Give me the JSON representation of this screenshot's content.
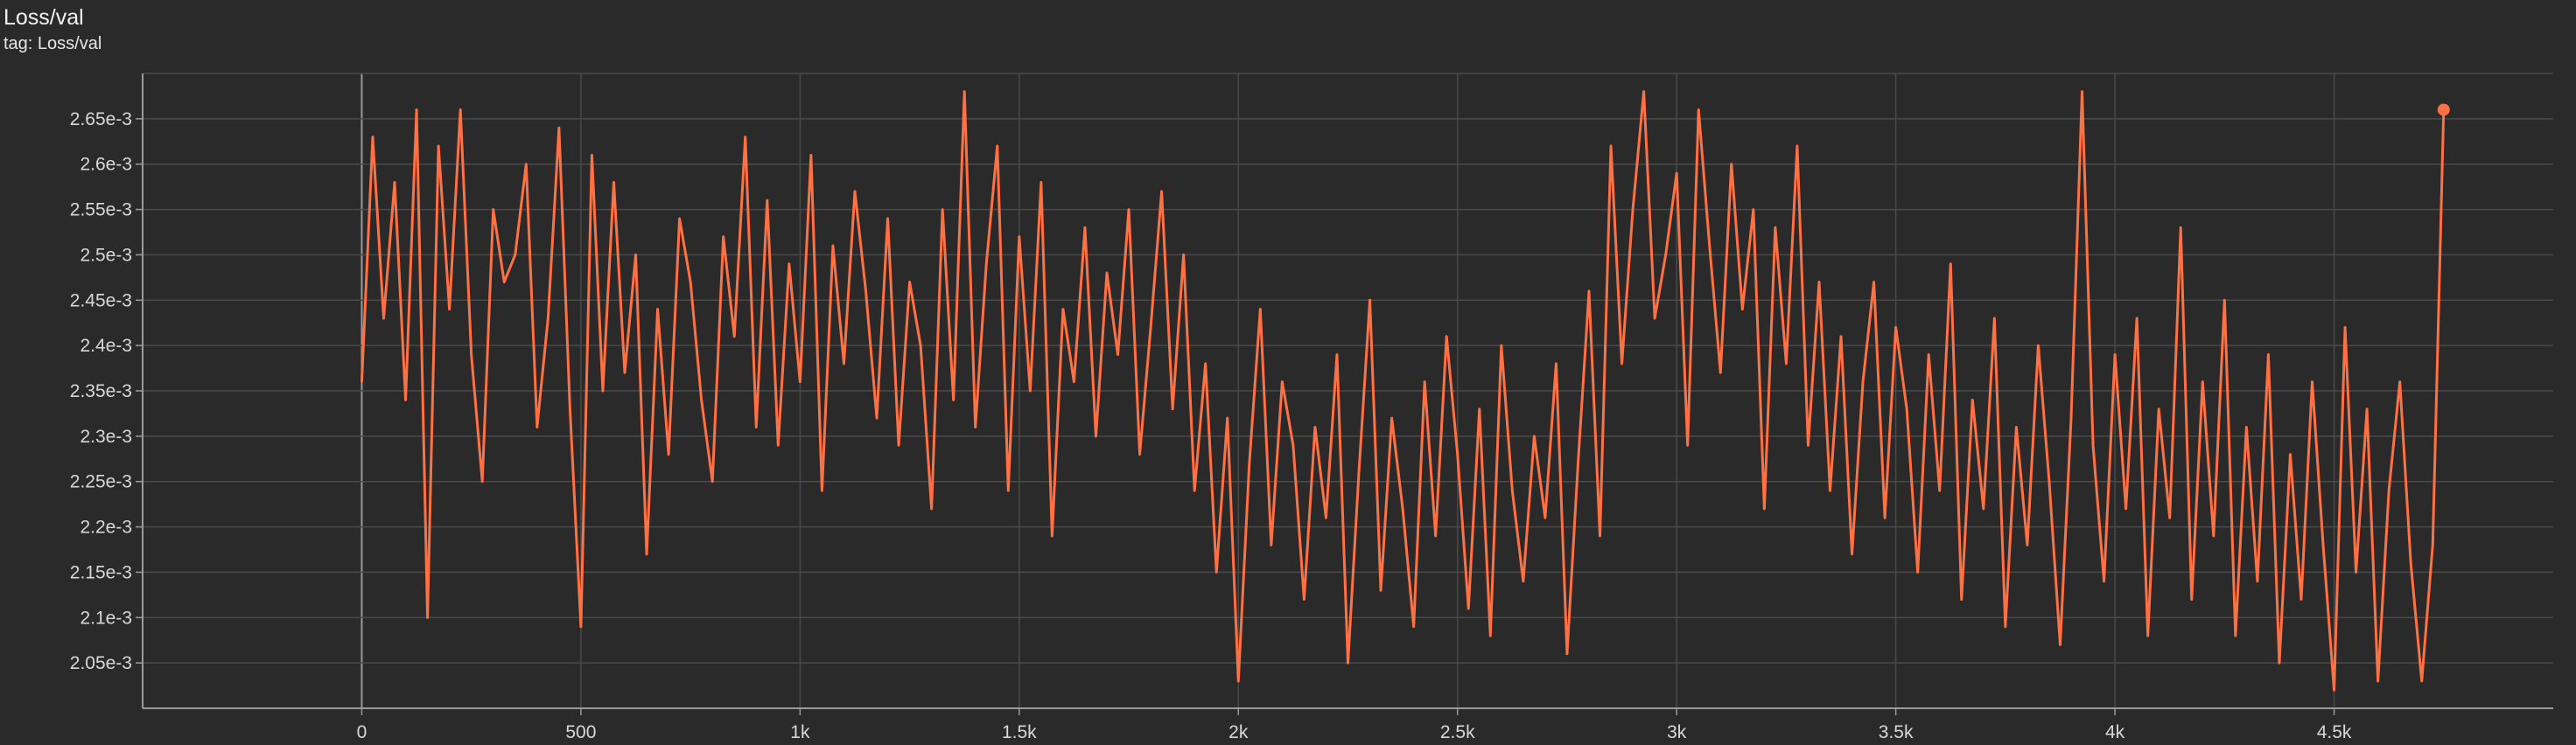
{
  "card": {
    "title": "Loss/val",
    "subtitle": "tag: Loss/val"
  },
  "colors": {
    "background": "#2a2a2a",
    "series": "#ff7043",
    "grid": "#4a4a4a",
    "axis": "#9a9a9a"
  },
  "chart_data": {
    "type": "line",
    "title": "Loss/val",
    "xlabel": "",
    "ylabel": "",
    "xlim": [
      -500,
      5000
    ],
    "ylim": [
      0.002,
      0.0027
    ],
    "grid": true,
    "x_ticks": [
      0,
      500,
      1000,
      1500,
      2000,
      2500,
      3000,
      3500,
      4000,
      4500
    ],
    "x_tick_labels": [
      "0",
      "500",
      "1k",
      "1.5k",
      "2k",
      "2.5k",
      "3k",
      "3.5k",
      "4k",
      "4.5k"
    ],
    "y_ticks": [
      0.00205,
      0.0021,
      0.00215,
      0.0022,
      0.00225,
      0.0023,
      0.00235,
      0.0024,
      0.00245,
      0.0025,
      0.00255,
      0.0026,
      0.00265
    ],
    "y_tick_labels": [
      "2.05e-3",
      "2.1e-3",
      "2.15e-3",
      "2.2e-3",
      "2.25e-3",
      "2.3e-3",
      "2.35e-3",
      "2.4e-3",
      "2.45e-3",
      "2.5e-3",
      "2.55e-3",
      "2.6e-3",
      "2.65e-3"
    ],
    "series": [
      {
        "name": "",
        "color": "#ff7043",
        "x": [
          0,
          25,
          50,
          75,
          100,
          125,
          150,
          175,
          200,
          225,
          250,
          275,
          300,
          325,
          350,
          375,
          400,
          425,
          450,
          475,
          500,
          525,
          550,
          575,
          600,
          625,
          650,
          675,
          700,
          725,
          750,
          775,
          800,
          825,
          850,
          875,
          900,
          925,
          950,
          975,
          1000,
          1025,
          1050,
          1075,
          1100,
          1125,
          1150,
          1175,
          1200,
          1225,
          1250,
          1275,
          1300,
          1325,
          1350,
          1375,
          1400,
          1425,
          1450,
          1475,
          1500,
          1525,
          1550,
          1575,
          1600,
          1625,
          1650,
          1675,
          1700,
          1725,
          1750,
          1775,
          1800,
          1825,
          1850,
          1875,
          1900,
          1925,
          1950,
          1975,
          2000,
          2025,
          2050,
          2075,
          2100,
          2125,
          2150,
          2175,
          2200,
          2225,
          2250,
          2275,
          2300,
          2325,
          2350,
          2375,
          2400,
          2425,
          2450,
          2475,
          2500,
          2525,
          2550,
          2575,
          2600,
          2625,
          2650,
          2675,
          2700,
          2725,
          2750,
          2775,
          2800,
          2825,
          2850,
          2875,
          2900,
          2925,
          2950,
          2975,
          3000,
          3025,
          3050,
          3075,
          3100,
          3125,
          3150,
          3175,
          3200,
          3225,
          3250,
          3275,
          3300,
          3325,
          3350,
          3375,
          3400,
          3425,
          3450,
          3475,
          3500,
          3525,
          3550,
          3575,
          3600,
          3625,
          3650,
          3675,
          3700,
          3725,
          3750,
          3775,
          3800,
          3825,
          3850,
          3875,
          3900,
          3925,
          3950,
          3975,
          4000,
          4025,
          4050,
          4075,
          4100,
          4125,
          4150,
          4175,
          4200,
          4225,
          4250,
          4275,
          4300,
          4325,
          4350,
          4375,
          4400,
          4425,
          4450,
          4475,
          4500,
          4525,
          4550,
          4575,
          4600,
          4625,
          4650,
          4675,
          4700,
          4725,
          4750
        ],
        "y": [
          0.00236,
          0.00263,
          0.00243,
          0.00258,
          0.00234,
          0.00266,
          0.0021,
          0.00262,
          0.00244,
          0.00266,
          0.00239,
          0.00225,
          0.00255,
          0.00247,
          0.0025,
          0.0026,
          0.00231,
          0.00243,
          0.00264,
          0.00233,
          0.00209,
          0.00261,
          0.00235,
          0.00258,
          0.00237,
          0.0025,
          0.00217,
          0.00244,
          0.00228,
          0.00254,
          0.00247,
          0.00234,
          0.00225,
          0.00252,
          0.00241,
          0.00263,
          0.00231,
          0.00256,
          0.00229,
          0.00249,
          0.00236,
          0.00261,
          0.00224,
          0.00251,
          0.00238,
          0.00257,
          0.00246,
          0.00232,
          0.00254,
          0.00229,
          0.00247,
          0.0024,
          0.00222,
          0.00255,
          0.00234,
          0.00268,
          0.00231,
          0.00249,
          0.00262,
          0.00224,
          0.00252,
          0.00235,
          0.00258,
          0.00219,
          0.00244,
          0.00236,
          0.00253,
          0.0023,
          0.00248,
          0.00239,
          0.00255,
          0.00228,
          0.00242,
          0.00257,
          0.00233,
          0.0025,
          0.00224,
          0.00238,
          0.00215,
          0.00232,
          0.00203,
          0.00227,
          0.00244,
          0.00218,
          0.00236,
          0.00229,
          0.00212,
          0.00231,
          0.00221,
          0.00239,
          0.00205,
          0.00226,
          0.00245,
          0.00213,
          0.00232,
          0.00222,
          0.00209,
          0.00236,
          0.00219,
          0.00241,
          0.00228,
          0.00211,
          0.00233,
          0.00208,
          0.0024,
          0.00224,
          0.00214,
          0.0023,
          0.00221,
          0.00238,
          0.00206,
          0.00227,
          0.00246,
          0.00219,
          0.00262,
          0.00238,
          0.00255,
          0.00268,
          0.00243,
          0.0025,
          0.00259,
          0.00229,
          0.00266,
          0.00251,
          0.00237,
          0.0026,
          0.00244,
          0.00255,
          0.00222,
          0.00253,
          0.00238,
          0.00262,
          0.00229,
          0.00247,
          0.00224,
          0.00241,
          0.00217,
          0.00236,
          0.00247,
          0.00221,
          0.00242,
          0.00233,
          0.00215,
          0.00239,
          0.00224,
          0.00249,
          0.00212,
          0.00234,
          0.00222,
          0.00243,
          0.00209,
          0.00231,
          0.00218,
          0.0024,
          0.00225,
          0.00207,
          0.00232,
          0.00268,
          0.00229,
          0.00214,
          0.00239,
          0.00222,
          0.00243,
          0.00208,
          0.00233,
          0.00221,
          0.00253,
          0.00212,
          0.00236,
          0.00219,
          0.00245,
          0.00208,
          0.00231,
          0.00214,
          0.00239,
          0.00205,
          0.00228,
          0.00212,
          0.00236,
          0.00218,
          0.00202,
          0.00242,
          0.00215,
          0.00233,
          0.00203,
          0.00224,
          0.00236,
          0.00216,
          0.00203,
          0.00218,
          0.00266
        ]
      }
    ]
  }
}
